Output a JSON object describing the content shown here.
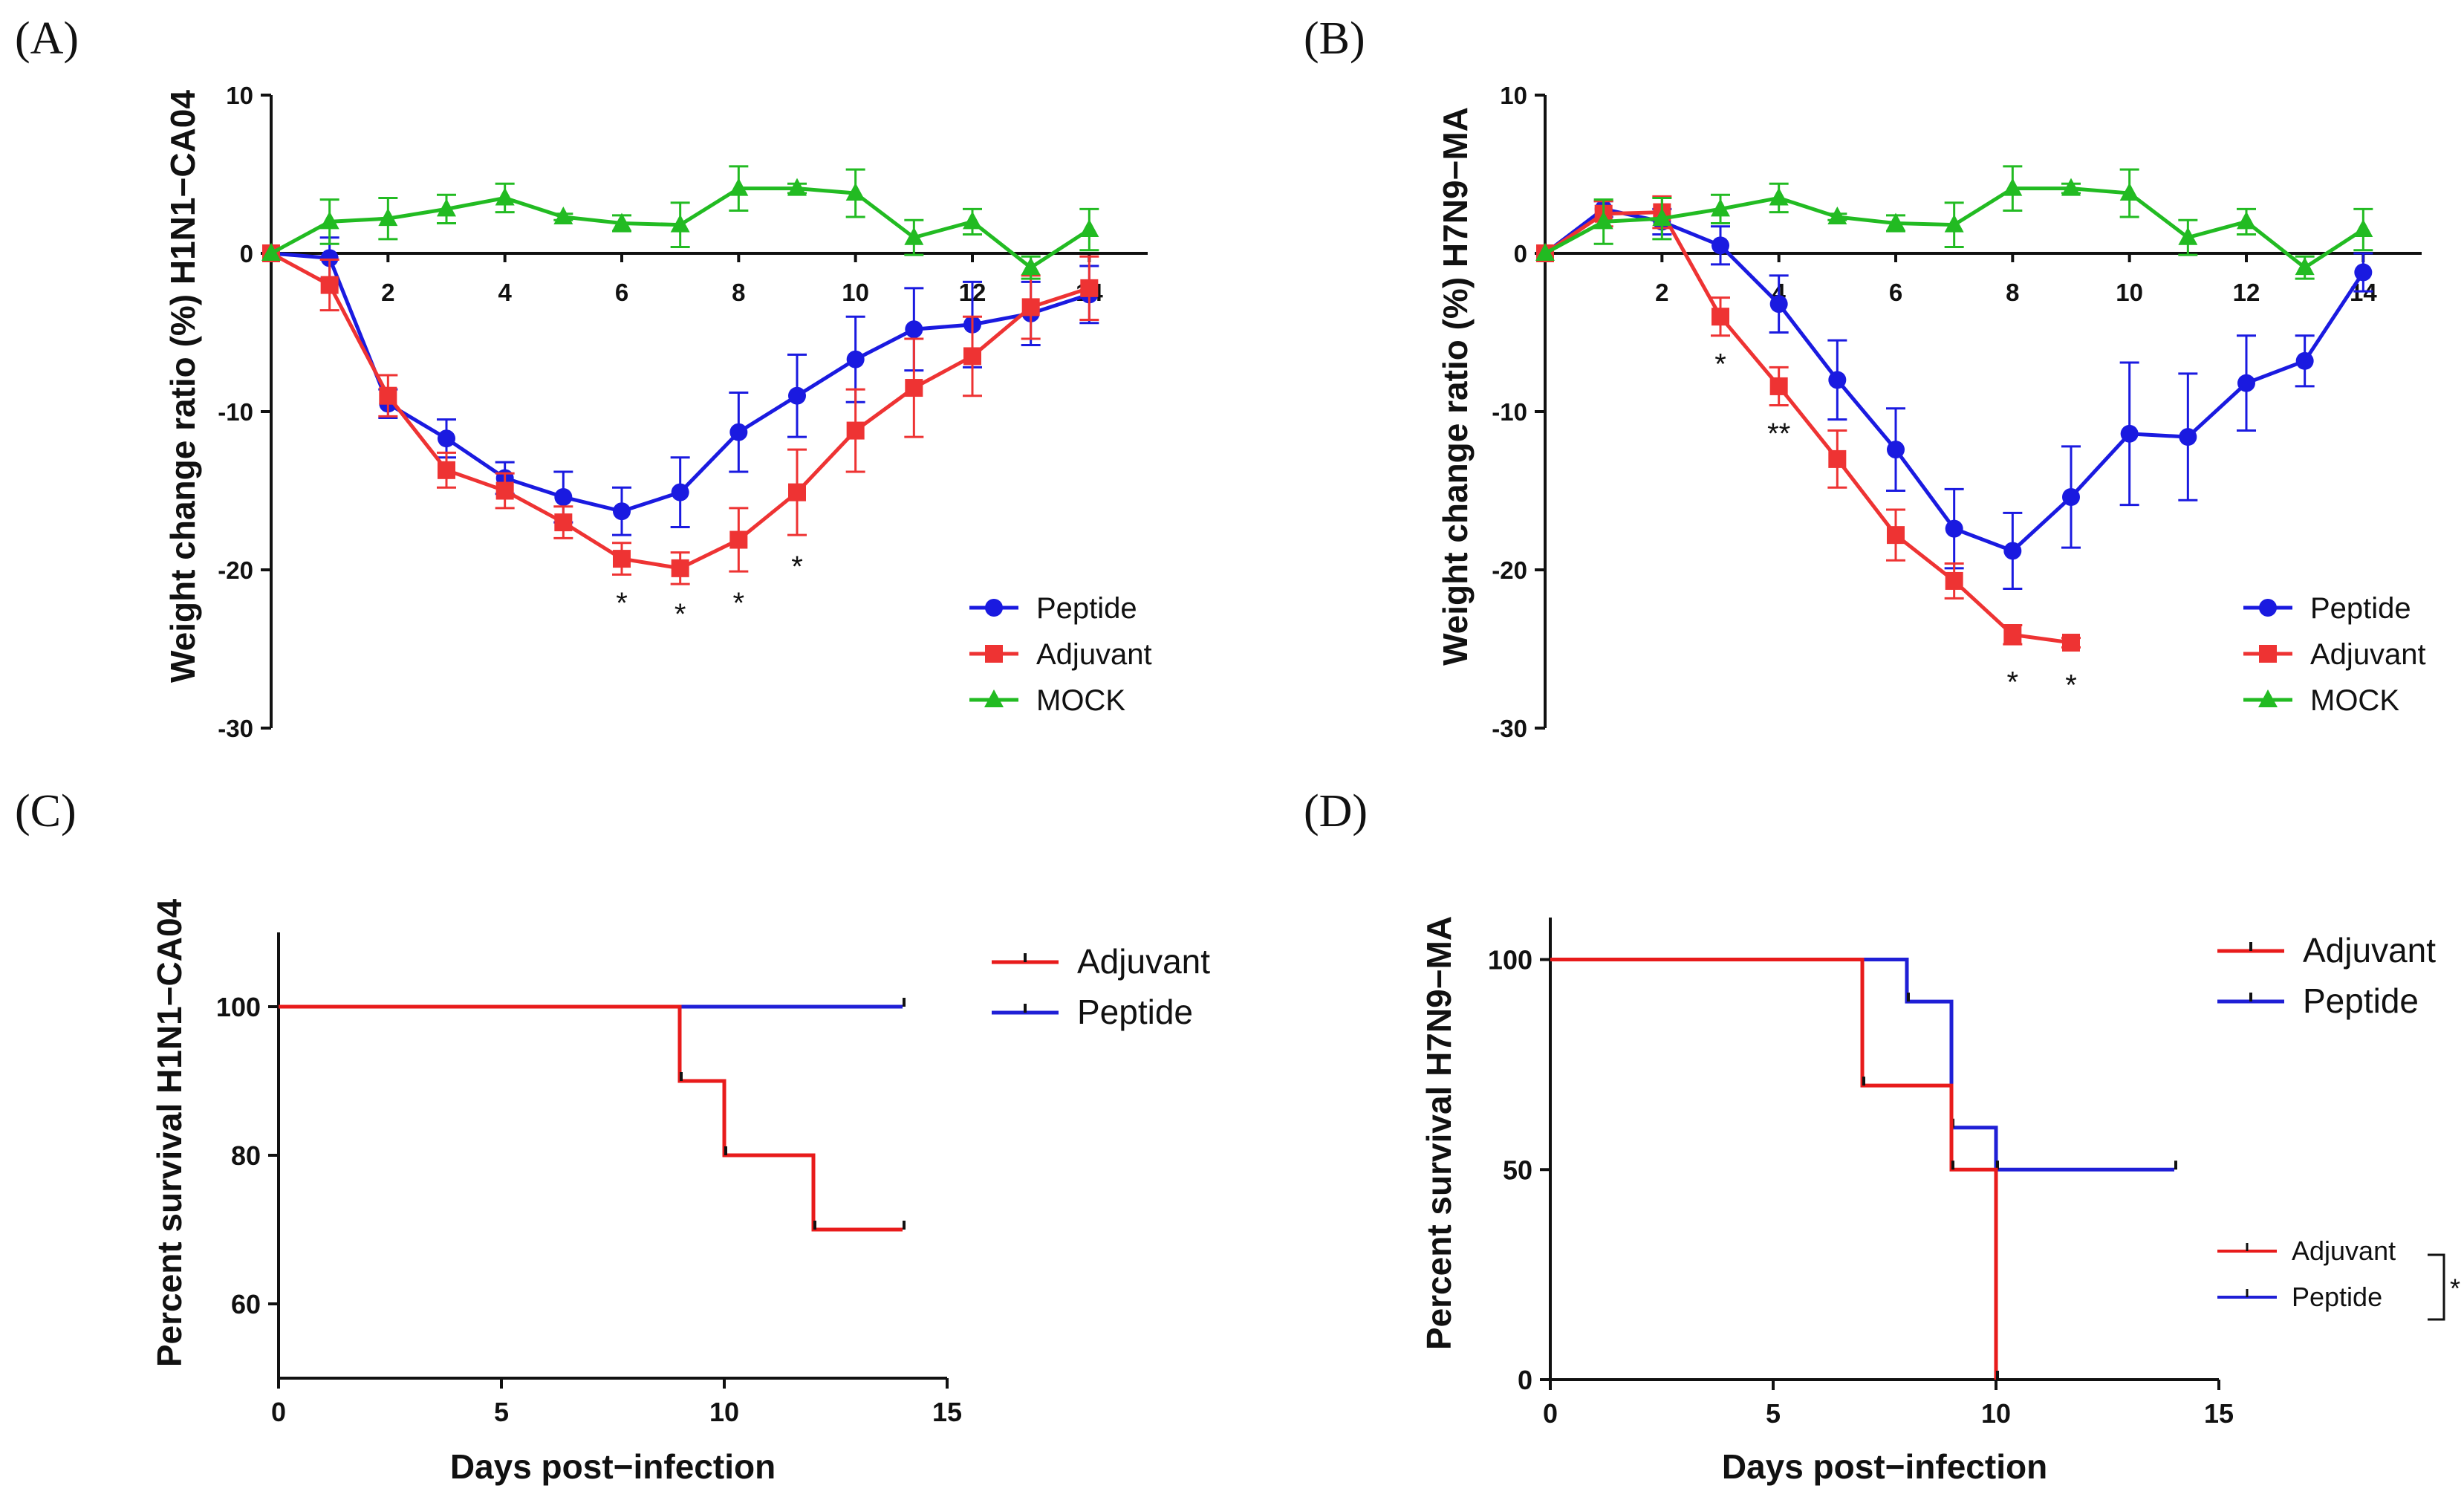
{
  "colors": {
    "peptide": "#1a1ae0",
    "adjuvant": "#ee3333",
    "mock": "#22bb22",
    "adjuvant_km": "#e81b1b",
    "peptide_km": "#1f1fd6",
    "axis": "#111111"
  },
  "chart_data": [
    {
      "id": "A",
      "panel_label": "(A)",
      "type": "line",
      "title": "",
      "xlabel": "",
      "ylabel": "Weight change ratio (%) H1N1−CA04",
      "xlim": [
        0,
        15
      ],
      "ylim": [
        -30,
        10
      ],
      "x_ticks": [
        2,
        4,
        6,
        8,
        10,
        12,
        14
      ],
      "x_tick_labels": [
        "2",
        "4",
        "6",
        "8",
        "10",
        "12",
        "14"
      ],
      "y_ticks": [
        10,
        0,
        -10,
        -20,
        -30
      ],
      "y_tick_labels": [
        "10",
        "0",
        "-10",
        "-20",
        "-30"
      ],
      "legend": {
        "position": "bottom-right",
        "entries": [
          "Peptide",
          "Adjuvant",
          "MOCK"
        ]
      },
      "series": [
        {
          "name": "Peptide",
          "color": "#1a1ae0",
          "marker": "circle",
          "x": [
            0,
            1,
            2,
            3,
            4,
            5,
            6,
            7,
            8,
            9,
            10,
            11,
            12,
            13,
            14
          ],
          "y": [
            0,
            -0.3,
            -9.5,
            -11.7,
            -14.2,
            -15.4,
            -16.3,
            -15.1,
            -11.3,
            -9.0,
            -6.7,
            -4.8,
            -4.5,
            -3.8,
            -2.6
          ],
          "err": [
            0,
            1.3,
            0.9,
            1.2,
            1.0,
            1.6,
            1.5,
            2.2,
            2.5,
            2.6,
            2.7,
            2.6,
            2.7,
            2.0,
            1.8
          ]
        },
        {
          "name": "Adjuvant",
          "color": "#ee3333",
          "marker": "square",
          "x": [
            0,
            1,
            2,
            3,
            4,
            5,
            6,
            7,
            8,
            9,
            10,
            11,
            12,
            13,
            14
          ],
          "y": [
            0,
            -2.0,
            -9.0,
            -13.7,
            -15.0,
            -17.0,
            -19.3,
            -19.9,
            -18.1,
            -15.1,
            -11.2,
            -8.5,
            -6.5,
            -3.4,
            -2.2
          ],
          "err": [
            0,
            1.6,
            1.3,
            1.1,
            1.1,
            1.0,
            1.0,
            1.0,
            2.0,
            2.7,
            2.6,
            3.1,
            2.5,
            2.0,
            2.0
          ]
        },
        {
          "name": "MOCK",
          "color": "#22bb22",
          "marker": "triangle",
          "x": [
            0,
            1,
            2,
            3,
            4,
            5,
            6,
            7,
            8,
            9,
            10,
            11,
            12,
            13,
            14
          ],
          "y": [
            0,
            2.0,
            2.2,
            2.8,
            3.5,
            2.3,
            1.9,
            1.8,
            4.1,
            4.1,
            3.8,
            1.0,
            2.0,
            -0.9,
            1.5
          ],
          "err": [
            0,
            1.4,
            1.3,
            0.9,
            0.9,
            0.2,
            0.5,
            1.4,
            1.4,
            0.3,
            1.5,
            1.1,
            0.8,
            0.7,
            1.3
          ]
        }
      ],
      "annotations": [
        {
          "text": "*",
          "x": 6,
          "y": -21.5
        },
        {
          "text": "*",
          "x": 7,
          "y": -22.2
        },
        {
          "text": "*",
          "x": 8,
          "y": -21.5
        },
        {
          "text": "*",
          "x": 9,
          "y": -19.2
        }
      ]
    },
    {
      "id": "B",
      "panel_label": "(B)",
      "type": "line",
      "title": "",
      "xlabel": "",
      "ylabel": "Weight change ratio (%) H7N9−MA",
      "xlim": [
        0,
        15
      ],
      "ylim": [
        -30,
        10
      ],
      "x_ticks": [
        2,
        4,
        6,
        8,
        10,
        12,
        14
      ],
      "x_tick_labels": [
        "2",
        "4",
        "6",
        "8",
        "10",
        "12",
        "14"
      ],
      "y_ticks": [
        10,
        0,
        -10,
        -20,
        -30
      ],
      "y_tick_labels": [
        "10",
        "0",
        "-10",
        "-20",
        "-30"
      ],
      "legend": {
        "position": "bottom-right",
        "entries": [
          "Peptide",
          "Adjuvant",
          "MOCK"
        ]
      },
      "series": [
        {
          "name": "Peptide",
          "color": "#1a1ae0",
          "marker": "circle",
          "x": [
            0,
            1,
            2,
            3,
            4,
            5,
            6,
            7,
            8,
            9,
            10,
            11,
            12,
            13,
            14
          ],
          "y": [
            0,
            2.8,
            2.0,
            0.5,
            -3.2,
            -8.0,
            -12.4,
            -17.4,
            -18.8,
            -15.4,
            -11.4,
            -11.6,
            -8.2,
            -6.8,
            -1.2
          ],
          "err": [
            0,
            0.5,
            0.8,
            1.2,
            1.8,
            2.5,
            2.6,
            2.5,
            2.4,
            3.2,
            4.5,
            4.0,
            3.0,
            1.6,
            1.2
          ]
        },
        {
          "name": "Adjuvant",
          "color": "#ee3333",
          "marker": "square",
          "x": [
            0,
            1,
            2,
            3,
            4,
            5,
            6,
            7,
            8,
            9
          ],
          "y": [
            0,
            2.5,
            2.6,
            -4.0,
            -8.4,
            -13.0,
            -17.8,
            -20.7,
            -24.1,
            -24.6
          ],
          "err": [
            0,
            0.8,
            1.0,
            1.2,
            1.2,
            1.8,
            1.6,
            1.1,
            0.6,
            0.3
          ]
        },
        {
          "name": "MOCK",
          "color": "#22bb22",
          "marker": "triangle",
          "x": [
            0,
            1,
            2,
            3,
            4,
            5,
            6,
            7,
            8,
            9,
            10,
            11,
            12,
            13,
            14
          ],
          "y": [
            0,
            2.0,
            2.2,
            2.8,
            3.5,
            2.3,
            1.9,
            1.8,
            4.1,
            4.1,
            3.8,
            1.0,
            2.0,
            -0.9,
            1.5
          ],
          "err": [
            0,
            1.4,
            1.3,
            0.9,
            0.9,
            0.2,
            0.5,
            1.4,
            1.4,
            0.3,
            1.5,
            1.1,
            0.8,
            0.7,
            1.3
          ]
        }
      ],
      "annotations": [
        {
          "text": "*",
          "x": 3,
          "y": -6.4
        },
        {
          "text": "**",
          "x": 4,
          "y": -10.8
        },
        {
          "text": "*",
          "x": 8,
          "y": -26.5
        },
        {
          "text": "*",
          "x": 9,
          "y": -26.7
        }
      ]
    },
    {
      "id": "C",
      "panel_label": "(C)",
      "type": "line",
      "subtype": "kaplan-meier",
      "title": "",
      "xlabel": "Days post−infection",
      "ylabel": "Percent survival H1N1−CA04",
      "xlim": [
        0,
        15
      ],
      "ylim": [
        50,
        110
      ],
      "x_ticks": [
        0,
        5,
        10,
        15
      ],
      "x_tick_labels": [
        "0",
        "5",
        "10",
        "15"
      ],
      "y_ticks": [
        100,
        80,
        60
      ],
      "y_tick_labels": [
        "100",
        "80",
        "60"
      ],
      "legend": {
        "position": "top-right",
        "entries": [
          "Adjuvant",
          "Peptide"
        ]
      },
      "series": [
        {
          "name": "Adjuvant",
          "color": "#e81b1b",
          "x": [
            0,
            9,
            10,
            12,
            14
          ],
          "y": [
            100,
            90,
            80,
            70,
            70
          ]
        },
        {
          "name": "Peptide",
          "color": "#1f1fd6",
          "x": [
            0,
            14
          ],
          "y": [
            100,
            100
          ]
        }
      ]
    },
    {
      "id": "D",
      "panel_label": "(D)",
      "type": "line",
      "subtype": "kaplan-meier",
      "title": "",
      "xlabel": "Days post−infection",
      "ylabel": "Percent survival H7N9−MA",
      "xlim": [
        0,
        15
      ],
      "ylim": [
        0,
        110
      ],
      "x_ticks": [
        0,
        5,
        10,
        15
      ],
      "x_tick_labels": [
        "0",
        "5",
        "10",
        "15"
      ],
      "y_ticks": [
        100,
        50,
        0
      ],
      "y_tick_labels": [
        "100",
        "50",
        "0"
      ],
      "legend": {
        "position": "top-right",
        "entries": [
          "Adjuvant",
          "Peptide"
        ]
      },
      "legend2": {
        "position": "right",
        "entries": [
          "Adjuvant",
          "Peptide"
        ],
        "bracket_label": "*"
      },
      "series": [
        {
          "name": "Adjuvant",
          "color": "#e81b1b",
          "x": [
            0,
            7,
            9,
            10
          ],
          "y": [
            100,
            70,
            50,
            0
          ]
        },
        {
          "name": "Peptide",
          "color": "#1f1fd6",
          "x": [
            0,
            8,
            9,
            10,
            14
          ],
          "y": [
            100,
            90,
            60,
            50,
            50
          ]
        }
      ]
    }
  ]
}
